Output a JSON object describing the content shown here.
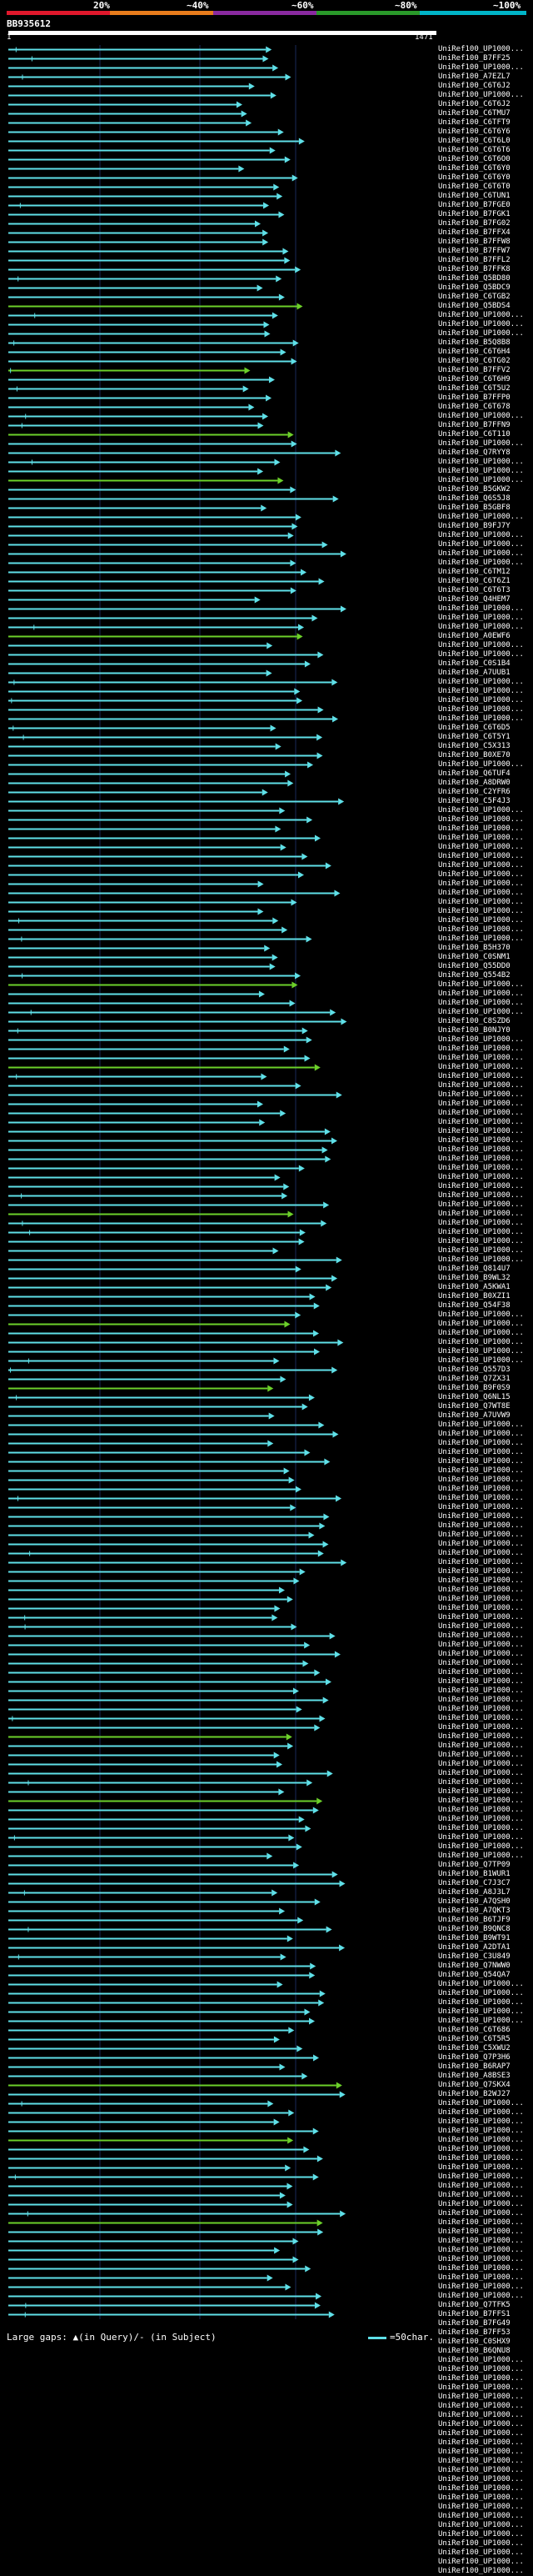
{
  "legend": {
    "labels": [
      "20%",
      "~40%",
      "~60%",
      "~80%",
      "~100%"
    ],
    "colors": [
      "#e0182c",
      "#e87c1c",
      "#8a2aa0",
      "#2a9a2a",
      "#00b4c8"
    ]
  },
  "query": {
    "id": "BB935612",
    "start": "1",
    "end": "1471"
  },
  "hits": [
    "UniRef100_UP1000...",
    "UniRef100_B7FF25",
    "UniRef100_UP1000...",
    "UniRef100_A7EZL7",
    "UniRef100_C6T6J2",
    "UniRef100_UP1000...",
    "UniRef100_C6T6J2",
    "UniRef100_C6TMU7",
    "UniRef100_C6TFT9",
    "UniRef100_C6T6Y6",
    "UniRef100_C6T6L0",
    "UniRef100_C6T6T6",
    "UniRef100_C6T6O0",
    "UniRef100_C6T6Y0",
    "UniRef100_C6T6Y0",
    "UniRef100_C6T6T0",
    "UniRef100_C6TUN1",
    "UniRef100_B7FGE0",
    "UniRef100_B7FGK1",
    "UniRef100_B7FG02",
    "UniRef100_B7FFX4",
    "UniRef100_B7FFW8",
    "UniRef100_B7FFW7",
    "UniRef100_B7FFL2",
    "UniRef100_B7FFK8",
    "UniRef100_Q5BD80",
    "UniRef100_Q5BDC9",
    "UniRef100_C6TGB2",
    "UniRef100_Q5BDS4",
    "UniRef100_UP1000...",
    "UniRef100_UP1000...",
    "UniRef100_UP1000...",
    "UniRef100_B5Q8B8",
    "UniRef100_C6T6H4",
    "UniRef100_C6TG02",
    "UniRef100_B7FFV2",
    "UniRef100_C6T6H9",
    "UniRef100_C6T5U2",
    "UniRef100_B7FFP0",
    "UniRef100_C6T678",
    "UniRef100_UP1000...",
    "UniRef100_B7FFN9",
    "UniRef100_C6T110",
    "UniRef100_UP1000...",
    "UniRef100_Q7RYY8",
    "UniRef100_UP1000...",
    "UniRef100_UP1000...",
    "UniRef100_UP1000...",
    "UniRef100_B5GKW2",
    "UniRef100_Q6S5J8",
    "UniRef100_B5GBF8",
    "UniRef100_UP1000...",
    "UniRef100_B9FJ7Y",
    "UniRef100_UP1000...",
    "UniRef100_UP1000...",
    "UniRef100_UP1000...",
    "UniRef100_UP1000...",
    "UniRef100_C6TM12",
    "UniRef100_C6T6Z1",
    "UniRef100_C6T6T3",
    "UniRef100_Q4HEM7",
    "UniRef100_UP1000...",
    "UniRef100_UP1000...",
    "UniRef100_UP1000...",
    "UniRef100_A0EWF6",
    "UniRef100_UP1000...",
    "UniRef100_UP1000...",
    "UniRef100_C0S1B4",
    "UniRef100_A7UUB1",
    "UniRef100_UP1000...",
    "UniRef100_UP1000...",
    "UniRef100_UP1000...",
    "UniRef100_UP1000...",
    "UniRef100_UP1000...",
    "UniRef100_C6T6D5",
    "UniRef100_C6T5Y1",
    "UniRef100_C5X313",
    "UniRef100_B0XE70",
    "UniRef100_UP1000...",
    "UniRef100_Q6TUF4",
    "UniRef100_A8DRW0",
    "UniRef100_C2YFR6",
    "UniRef100_C5F4J3",
    "UniRef100_UP1000...",
    "UniRef100_UP1000...",
    "UniRef100_UP1000...",
    "UniRef100_UP1000...",
    "UniRef100_UP1000...",
    "UniRef100_UP1000...",
    "UniRef100_UP1000...",
    "UniRef100_UP1000...",
    "UniRef100_UP1000...",
    "UniRef100_UP1000...",
    "UniRef100_UP1000...",
    "UniRef100_UP1000...",
    "UniRef100_UP1000...",
    "UniRef100_UP1000...",
    "UniRef100_UP1000...",
    "UniRef100_B5H370",
    "UniRef100_C0SNM1",
    "UniRef100_Q55DD0",
    "UniRef100_Q554B2",
    "UniRef100_UP1000...",
    "UniRef100_UP1000...",
    "UniRef100_UP1000...",
    "UniRef100_UP1000...",
    "UniRef100_C8SZD6",
    "UniRef100_B0NJY0",
    "UniRef100_UP1000...",
    "UniRef100_UP1000...",
    "UniRef100_UP1000...",
    "UniRef100_UP1000...",
    "UniRef100_UP1000...",
    "UniRef100_UP1000...",
    "UniRef100_UP1000...",
    "UniRef100_UP1000...",
    "UniRef100_UP1000...",
    "UniRef100_UP1000...",
    "UniRef100_UP1000...",
    "UniRef100_UP1000...",
    "UniRef100_UP1000...",
    "UniRef100_UP1000...",
    "UniRef100_UP1000...",
    "UniRef100_UP1000...",
    "UniRef100_UP1000...",
    "UniRef100_UP1000...",
    "UniRef100_UP1000...",
    "UniRef100_UP1000...",
    "UniRef100_UP1000...",
    "UniRef100_UP1000...",
    "UniRef100_UP1000...",
    "UniRef100_UP1000...",
    "UniRef100_UP1000...",
    "UniRef100_Q814U7",
    "UniRef100_B9WL32",
    "UniRef100_A5KWA1",
    "UniRef100_B0XZI1",
    "UniRef100_Q54F38",
    "UniRef100_UP1000...",
    "UniRef100_UP1000...",
    "UniRef100_UP1000...",
    "UniRef100_UP1000...",
    "UniRef100_UP1000...",
    "UniRef100_UP1000...",
    "UniRef100_Q557D3",
    "UniRef100_Q7ZX31",
    "UniRef100_B9F0S9",
    "UniRef100_Q6NL15",
    "UniRef100_Q7WT8E",
    "UniRef100_A7UVW9",
    "UniRef100_UP1000...",
    "UniRef100_UP1000...",
    "UniRef100_UP1000...",
    "UniRef100_UP1000...",
    "UniRef100_UP1000...",
    "UniRef100_UP1000...",
    "UniRef100_UP1000...",
    "UniRef100_UP1000...",
    "UniRef100_UP1000...",
    "UniRef100_UP1000...",
    "UniRef100_UP1000...",
    "UniRef100_UP1000...",
    "UniRef100_UP1000...",
    "UniRef100_UP1000...",
    "UniRef100_UP1000...",
    "UniRef100_UP1000...",
    "UniRef100_UP1000...",
    "UniRef100_UP1000...",
    "UniRef100_UP1000...",
    "UniRef100_UP1000...",
    "UniRef100_UP1000...",
    "UniRef100_UP1000...",
    "UniRef100_UP1000...",
    "UniRef100_UP1000...",
    "UniRef100_UP1000...",
    "UniRef100_UP1000...",
    "UniRef100_UP1000...",
    "UniRef100_UP1000...",
    "UniRef100_UP1000...",
    "UniRef100_UP1000...",
    "UniRef100_UP1000...",
    "UniRef100_UP1000...",
    "UniRef100_UP1000...",
    "UniRef100_UP1000...",
    "UniRef100_UP1000...",
    "UniRef100_UP1000...",
    "UniRef100_UP1000...",
    "UniRef100_UP1000...",
    "UniRef100_UP1000...",
    "UniRef100_UP1000...",
    "UniRef100_UP1000...",
    "UniRef100_UP1000...",
    "UniRef100_UP1000...",
    "UniRef100_UP1000...",
    "UniRef100_UP1000...",
    "UniRef100_UP1000...",
    "UniRef100_UP1000...",
    "UniRef100_UP1000...",
    "UniRef100_Q7TP09",
    "UniRef100_B1WUR1",
    "UniRef100_C7J3C7",
    "UniRef100_A8J3L7",
    "UniRef100_A7QSH0",
    "UniRef100_A7QKT3",
    "UniRef100_B6TJF9",
    "UniRef100_B9QNC8",
    "UniRef100_B9WT91",
    "UniRef100_A2DTA1",
    "UniRef100_C3U849",
    "UniRef100_Q7NWW0",
    "UniRef100_Q54QA7",
    "UniRef100_UP1000...",
    "UniRef100_UP1000...",
    "UniRef100_UP1000...",
    "UniRef100_UP1000...",
    "UniRef100_UP1000...",
    "UniRef100_C6T686",
    "UniRef100_C6T5R5",
    "UniRef100_C5XWU2",
    "UniRef100_Q7P3H6",
    "UniRef100_B6RAP7",
    "UniRef100_A8BSE3",
    "UniRef100_Q7SKX4",
    "UniRef100_B2WJ27",
    "UniRef100_UP1000...",
    "UniRef100_UP1000...",
    "UniRef100_UP1000...",
    "UniRef100_UP1000...",
    "UniRef100_UP1000...",
    "UniRef100_UP1000...",
    "UniRef100_UP1000...",
    "UniRef100_UP1000...",
    "UniRef100_UP1000...",
    "UniRef100_UP1000...",
    "UniRef100_UP1000...",
    "UniRef100_UP1000...",
    "UniRef100_UP1000...",
    "UniRef100_UP1000...",
    "UniRef100_UP1000...",
    "UniRef100_UP1000...",
    "UniRef100_UP1000...",
    "UniRef100_UP1000...",
    "UniRef100_UP1000...",
    "UniRef100_UP1000...",
    "UniRef100_UP1000...",
    "UniRef100_UP1000...",
    "UniRef100_Q7TFK5",
    "UniRef100_B7FFS1",
    "UniRef100_B7FG49",
    "UniRef100_B7FF53",
    "UniRef100_C0SHX9",
    "UniRef100_B6QNU8",
    "UniRef100_UP1000...",
    "UniRef100_UP1000...",
    "UniRef100_UP1000...",
    "UniRef100_UP1000...",
    "UniRef100_UP1000...",
    "UniRef100_UP1000...",
    "UniRef100_UP1000...",
    "UniRef100_UP1000...",
    "UniRef100_UP1000...",
    "UniRef100_UP1000...",
    "UniRef100_UP1000...",
    "UniRef100_UP1000...",
    "UniRef100_UP1000...",
    "UniRef100_UP1000...",
    "UniRef100_UP1000...",
    "UniRef100_UP1000...",
    "UniRef100_UP1000...",
    "UniRef100_UP1000...",
    "UniRef100_UP1000...",
    "UniRef100_UP1000...",
    "UniRef100_UP1000...",
    "UniRef100_UP1000...",
    "UniRef100_UP1000...",
    "UniRef100_UP1000..."
  ],
  "footer": {
    "text": "Large gaps: ▲(in Query)/- (in Subject)",
    "scale": "=50char."
  }
}
